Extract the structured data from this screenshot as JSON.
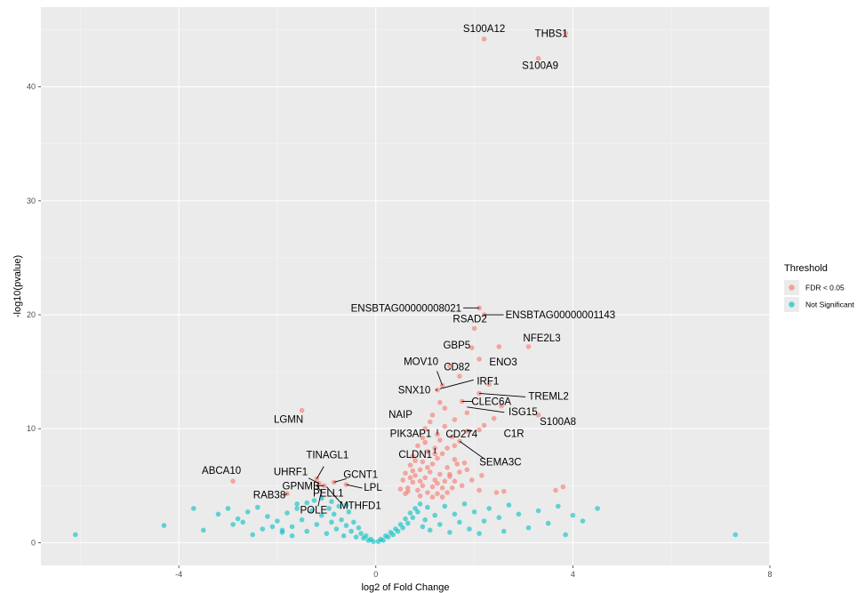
{
  "chart_data": {
    "type": "scatter",
    "xlabel": "log2 of Fold Change",
    "ylabel": "-log10(pvalue)",
    "xlim": [
      -6.8,
      8.0
    ],
    "ylim": [
      -2.0,
      47.0
    ],
    "x_ticks": [
      -4,
      0,
      4,
      8
    ],
    "y_ticks": [
      0,
      10,
      20,
      30,
      40
    ],
    "grid": true,
    "legend": {
      "title": "Threshold",
      "placement": "right",
      "entries": [
        {
          "label": "FDR < 0.05",
          "color": "#F8766D"
        },
        {
          "label": "Not Significant",
          "color": "#00BFC4"
        }
      ]
    },
    "series": [
      {
        "name": "FDR < 0.05",
        "color": "#F8766D",
        "points": [
          [
            -1.5,
            11.6
          ],
          [
            -2.9,
            5.4
          ],
          [
            -1.2,
            5.6
          ],
          [
            -1.15,
            5.2
          ],
          [
            -0.85,
            5.3
          ],
          [
            -0.6,
            5.1
          ],
          [
            -1.8,
            4.3
          ],
          [
            -1.05,
            5.0
          ],
          [
            2.2,
            44.2
          ],
          [
            3.85,
            44.7
          ],
          [
            3.3,
            42.5
          ],
          [
            2.1,
            20.6
          ],
          [
            2.2,
            20.0
          ],
          [
            2.0,
            18.8
          ],
          [
            1.95,
            17.1
          ],
          [
            3.1,
            17.2
          ],
          [
            2.1,
            16.1
          ],
          [
            1.25,
            13.4
          ],
          [
            1.35,
            13.8
          ],
          [
            2.1,
            13.1
          ],
          [
            1.75,
            12.4
          ],
          [
            2.55,
            12.0
          ],
          [
            3.3,
            11.2
          ],
          [
            1.25,
            9.5
          ],
          [
            1.85,
            9.8
          ],
          [
            2.1,
            9.9
          ],
          [
            1.7,
            8.9
          ],
          [
            1.6,
            8.5
          ],
          [
            1.2,
            8.3
          ],
          [
            1.55,
            9.3
          ],
          [
            1.15,
            11.2
          ],
          [
            1.4,
            11.8
          ],
          [
            1.85,
            11.4
          ],
          [
            1.6,
            10.8
          ],
          [
            2.3,
            13.9
          ],
          [
            2.5,
            17.2
          ],
          [
            1.5,
            15.5
          ],
          [
            1.7,
            14.6
          ],
          [
            2.4,
            10.9
          ],
          [
            1.4,
            10.2
          ],
          [
            2.2,
            10.3
          ],
          [
            1.3,
            12.3
          ],
          [
            1.1,
            10.6
          ],
          [
            1.0,
            10.0
          ],
          [
            0.95,
            9.2
          ],
          [
            0.85,
            8.5
          ],
          [
            1.05,
            8.0
          ],
          [
            1.25,
            7.4
          ],
          [
            1.35,
            7.8
          ],
          [
            0.75,
            7.6
          ],
          [
            0.95,
            7.1
          ],
          [
            1.15,
            6.9
          ],
          [
            1.45,
            6.6
          ],
          [
            1.6,
            7.3
          ],
          [
            1.8,
            7.0
          ],
          [
            0.7,
            6.8
          ],
          [
            0.9,
            6.4
          ],
          [
            1.1,
            6.2
          ],
          [
            1.3,
            6.0
          ],
          [
            1.5,
            6.0
          ],
          [
            1.7,
            6.2
          ],
          [
            0.6,
            6.1
          ],
          [
            0.8,
            5.9
          ],
          [
            1.0,
            5.7
          ],
          [
            1.2,
            5.5
          ],
          [
            1.4,
            5.4
          ],
          [
            1.6,
            5.4
          ],
          [
            0.55,
            5.5
          ],
          [
            0.75,
            5.3
          ],
          [
            0.95,
            5.0
          ],
          [
            1.15,
            4.9
          ],
          [
            1.35,
            4.8
          ],
          [
            0.65,
            4.8
          ],
          [
            0.85,
            4.6
          ],
          [
            1.05,
            4.4
          ],
          [
            1.25,
            4.3
          ],
          [
            1.45,
            4.4
          ],
          [
            0.6,
            4.3
          ],
          [
            0.9,
            4.1
          ],
          [
            1.15,
            4.0
          ],
          [
            1.35,
            4.0
          ],
          [
            0.7,
            5.7
          ],
          [
            1.05,
            6.6
          ],
          [
            1.25,
            5.2
          ],
          [
            0.5,
            4.7
          ],
          [
            1.55,
            4.8
          ],
          [
            1.75,
            5.0
          ],
          [
            1.95,
            5.5
          ],
          [
            2.15,
            5.9
          ],
          [
            2.1,
            4.6
          ],
          [
            2.45,
            4.4
          ],
          [
            2.6,
            4.5
          ],
          [
            3.8,
            4.9
          ],
          [
            3.65,
            4.6
          ],
          [
            1.85,
            6.4
          ],
          [
            1.45,
            8.3
          ],
          [
            1.0,
            8.8
          ],
          [
            1.3,
            9.0
          ],
          [
            0.8,
            7.2
          ],
          [
            0.65,
            4.5
          ],
          [
            1.2,
            7.8
          ],
          [
            0.9,
            5.4
          ],
          [
            1.5,
            5.8
          ],
          [
            0.75,
            6.3
          ],
          [
            1.65,
            6.9
          ]
        ]
      },
      {
        "name": "Not Significant",
        "color": "#00BFC4",
        "points": [
          [
            -6.1,
            0.7
          ],
          [
            -4.3,
            1.5
          ],
          [
            -3.7,
            3.0
          ],
          [
            -3.5,
            1.1
          ],
          [
            -3.2,
            2.5
          ],
          [
            -3.0,
            3.0
          ],
          [
            -2.9,
            1.6
          ],
          [
            -2.7,
            1.8
          ],
          [
            -2.6,
            2.7
          ],
          [
            -2.4,
            3.1
          ],
          [
            -2.3,
            1.2
          ],
          [
            -2.2,
            2.3
          ],
          [
            -2.0,
            1.9
          ],
          [
            -1.9,
            0.9
          ],
          [
            -1.8,
            2.6
          ],
          [
            -1.7,
            1.4
          ],
          [
            -1.6,
            3.4
          ],
          [
            -1.5,
            2.0
          ],
          [
            -1.4,
            1.0
          ],
          [
            -1.3,
            2.8
          ],
          [
            -1.25,
            3.7
          ],
          [
            -1.2,
            1.6
          ],
          [
            -1.1,
            2.4
          ],
          [
            -1.0,
            0.8
          ],
          [
            -0.95,
            3.0
          ],
          [
            -0.9,
            1.8
          ],
          [
            -0.85,
            2.5
          ],
          [
            -0.8,
            1.2
          ],
          [
            -0.75,
            3.2
          ],
          [
            -0.7,
            2.0
          ],
          [
            -0.65,
            0.6
          ],
          [
            -0.6,
            1.5
          ],
          [
            -0.55,
            2.7
          ],
          [
            -0.5,
            1.0
          ],
          [
            -0.45,
            1.8
          ],
          [
            -0.4,
            0.5
          ],
          [
            -0.35,
            1.3
          ],
          [
            -0.3,
            0.8
          ],
          [
            -0.25,
            0.4
          ],
          [
            -0.2,
            0.6
          ],
          [
            -0.15,
            0.2
          ],
          [
            -0.1,
            0.3
          ],
          [
            -0.05,
            0.1
          ],
          [
            0.05,
            0.1
          ],
          [
            0.1,
            0.3
          ],
          [
            0.15,
            0.2
          ],
          [
            0.2,
            0.6
          ],
          [
            0.25,
            0.5
          ],
          [
            0.3,
            0.9
          ],
          [
            0.35,
            0.7
          ],
          [
            0.4,
            1.2
          ],
          [
            0.45,
            1.0
          ],
          [
            0.5,
            1.6
          ],
          [
            0.55,
            1.3
          ],
          [
            0.6,
            2.1
          ],
          [
            0.65,
            1.7
          ],
          [
            0.7,
            2.6
          ],
          [
            0.75,
            2.2
          ],
          [
            0.8,
            3.0
          ],
          [
            0.85,
            2.7
          ],
          [
            0.9,
            3.4
          ],
          [
            0.95,
            1.4
          ],
          [
            1.0,
            2.0
          ],
          [
            1.05,
            3.1
          ],
          [
            1.1,
            1.1
          ],
          [
            1.2,
            2.4
          ],
          [
            1.3,
            1.6
          ],
          [
            1.4,
            3.2
          ],
          [
            1.5,
            0.9
          ],
          [
            1.6,
            2.5
          ],
          [
            1.7,
            1.8
          ],
          [
            1.8,
            3.4
          ],
          [
            1.9,
            1.2
          ],
          [
            2.0,
            2.7
          ],
          [
            2.1,
            0.8
          ],
          [
            2.2,
            1.9
          ],
          [
            2.3,
            3.0
          ],
          [
            2.5,
            2.2
          ],
          [
            2.6,
            1.0
          ],
          [
            2.7,
            3.3
          ],
          [
            2.9,
            2.5
          ],
          [
            3.1,
            1.3
          ],
          [
            3.3,
            2.8
          ],
          [
            3.5,
            1.7
          ],
          [
            3.7,
            3.2
          ],
          [
            3.85,
            0.7
          ],
          [
            4.0,
            2.4
          ],
          [
            4.2,
            1.9
          ],
          [
            4.5,
            3.0
          ],
          [
            7.3,
            0.7
          ],
          [
            -1.9,
            1.1
          ],
          [
            -2.5,
            0.7
          ],
          [
            -1.6,
            3.0
          ],
          [
            -2.1,
            1.4
          ],
          [
            -2.8,
            2.1
          ],
          [
            -1.1,
            3.9
          ],
          [
            -0.9,
            3.6
          ],
          [
            -0.6,
            3.3
          ],
          [
            -1.4,
            3.5
          ],
          [
            -1.7,
            0.6
          ]
        ]
      }
    ],
    "labels": [
      {
        "text": "S100A12",
        "x": 2.2,
        "y": 44.2
      },
      {
        "text": "THBS1",
        "x": 3.85,
        "y": 44.7
      },
      {
        "text": "S100A9",
        "x": 3.3,
        "y": 42.5
      },
      {
        "text": "ENSBTAG00000008021",
        "x": 2.1,
        "y": 20.6
      },
      {
        "text": "ENSBTAG00000001143",
        "x": 2.2,
        "y": 20.0
      },
      {
        "text": "RSAD2",
        "x": 2.0,
        "y": 18.8
      },
      {
        "text": "GBP5",
        "x": 1.95,
        "y": 17.1
      },
      {
        "text": "NFE2L3",
        "x": 3.1,
        "y": 17.2
      },
      {
        "text": "ENO3",
        "x": 2.1,
        "y": 16.1
      },
      {
        "text": "MOV10",
        "x": 1.35,
        "y": 13.8
      },
      {
        "text": "CD82",
        "x": 1.5,
        "y": 15.5
      },
      {
        "text": "IRF1",
        "x": 1.3,
        "y": 13.5
      },
      {
        "text": "SNX10",
        "x": 1.25,
        "y": 13.4
      },
      {
        "text": "TREML2",
        "x": 2.1,
        "y": 13.1
      },
      {
        "text": "NAIP",
        "x": 1.15,
        "y": 11.2
      },
      {
        "text": "CLEC6A",
        "x": 1.75,
        "y": 12.4
      },
      {
        "text": "ISG15",
        "x": 1.85,
        "y": 11.9
      },
      {
        "text": "S100A8",
        "x": 3.3,
        "y": 11.2
      },
      {
        "text": "LGMN",
        "x": -1.5,
        "y": 11.6
      },
      {
        "text": "PIK3AP1",
        "x": 1.25,
        "y": 9.5
      },
      {
        "text": "C1R",
        "x": 2.1,
        "y": 9.9
      },
      {
        "text": "CD274",
        "x": 1.85,
        "y": 9.8
      },
      {
        "text": "CLDN1",
        "x": 1.2,
        "y": 8.3
      },
      {
        "text": "SEMA3C",
        "x": 1.7,
        "y": 8.9
      },
      {
        "text": "TINAGL1",
        "x": -1.2,
        "y": 5.6
      },
      {
        "text": "UHRF1",
        "x": -1.15,
        "y": 5.2
      },
      {
        "text": "GCNT1",
        "x": -0.85,
        "y": 5.3
      },
      {
        "text": "ABCA10",
        "x": -2.9,
        "y": 5.4
      },
      {
        "text": "GPNMB",
        "x": -1.05,
        "y": 5.0
      },
      {
        "text": "LPL",
        "x": -0.6,
        "y": 5.1
      },
      {
        "text": "RAB38",
        "x": -1.8,
        "y": 4.3
      },
      {
        "text": "PELL1",
        "x": -1.2,
        "y": 5.0
      },
      {
        "text": "POLE",
        "x": -1.1,
        "y": 4.6
      },
      {
        "text": "MTHFD1",
        "x": -1.0,
        "y": 4.9
      }
    ]
  }
}
